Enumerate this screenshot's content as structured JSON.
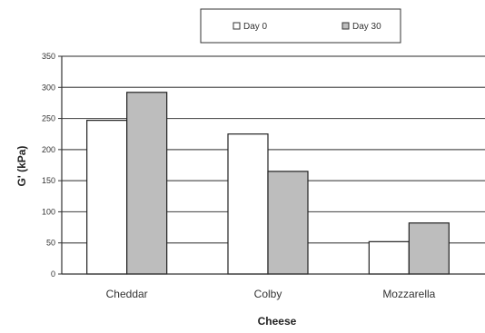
{
  "chart_data": {
    "type": "bar",
    "categories": [
      "Cheddar",
      "Colby",
      "Mozzarella"
    ],
    "series": [
      {
        "name": "Day 0",
        "values": [
          247,
          225,
          52
        ],
        "color": "#ffffff"
      },
      {
        "name": "Day 30",
        "values": [
          292,
          165,
          82
        ],
        "color": "#bdbdbd"
      }
    ],
    "title": "",
    "xlabel": "Cheese",
    "ylabel": "G' (kPa)",
    "ylim": [
      0,
      350
    ],
    "yticks": [
      0,
      50,
      100,
      150,
      200,
      250,
      300,
      350
    ],
    "grid": true,
    "legend_position": "top-center"
  }
}
